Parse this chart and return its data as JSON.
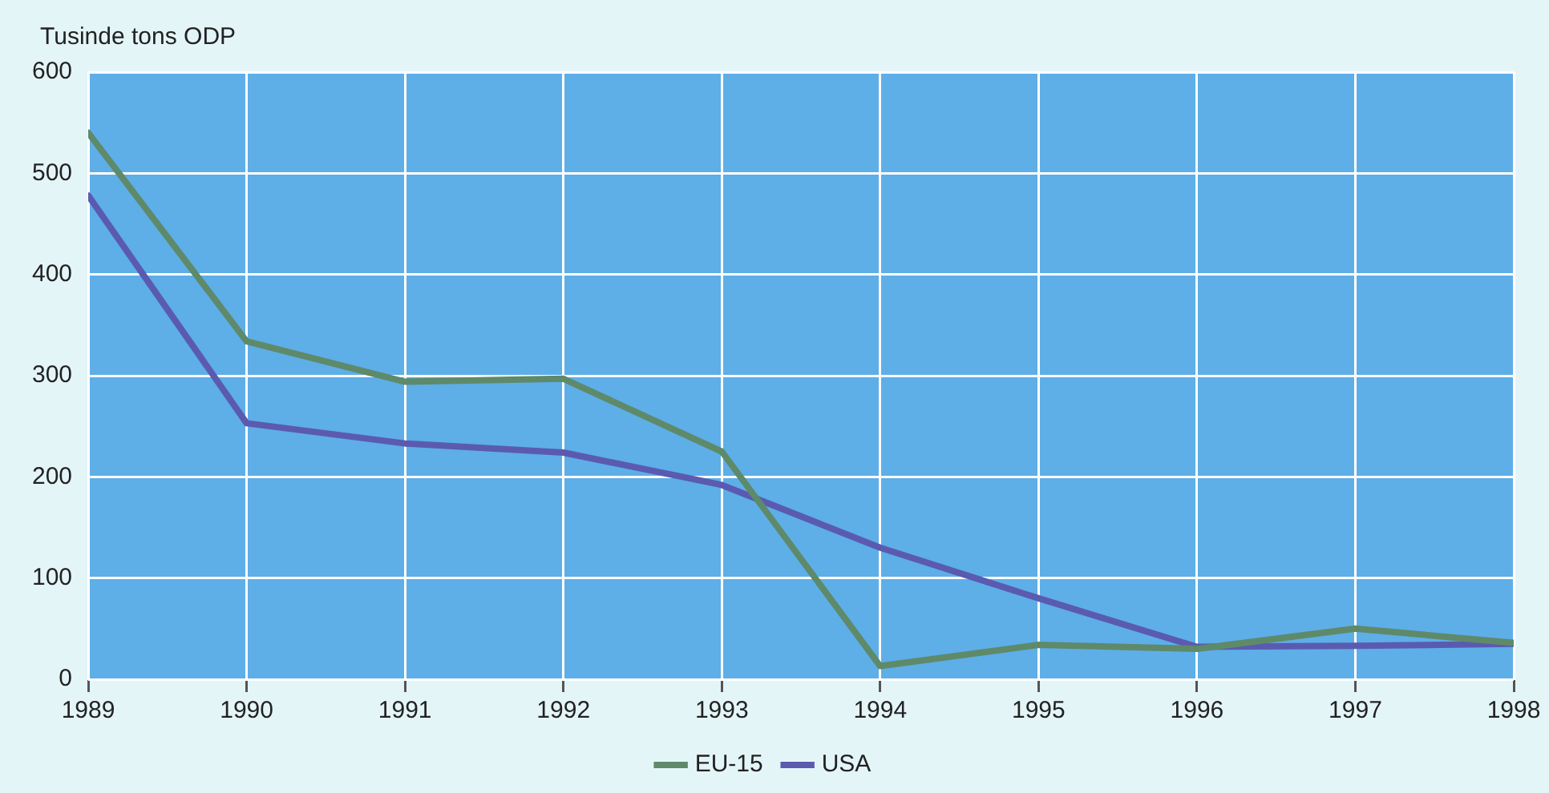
{
  "chart_data": {
    "type": "line",
    "ylabel": "Tusinde tons ODP",
    "x": [
      1989,
      1990,
      1991,
      1992,
      1993,
      1994,
      1995,
      1996,
      1997,
      1998
    ],
    "series": [
      {
        "name": "EU-15",
        "color": "#5e8a6a",
        "values": [
          540,
          334,
          294,
          297,
          225,
          13,
          34,
          30,
          50,
          36
        ]
      },
      {
        "name": "USA",
        "color": "#5a5bb0",
        "values": [
          478,
          253,
          233,
          224,
          192,
          130,
          80,
          32,
          33,
          35
        ]
      }
    ],
    "xlim": [
      1989,
      1998
    ],
    "xticks": [
      1989,
      1990,
      1991,
      1992,
      1993,
      1994,
      1995,
      1996,
      1997,
      1998
    ],
    "ylim": [
      0,
      600
    ],
    "yticks": [
      0,
      100,
      200,
      300,
      400,
      500,
      600
    ],
    "grid": true,
    "legend": "bottom",
    "marker": "none",
    "line_style": "solid"
  }
}
